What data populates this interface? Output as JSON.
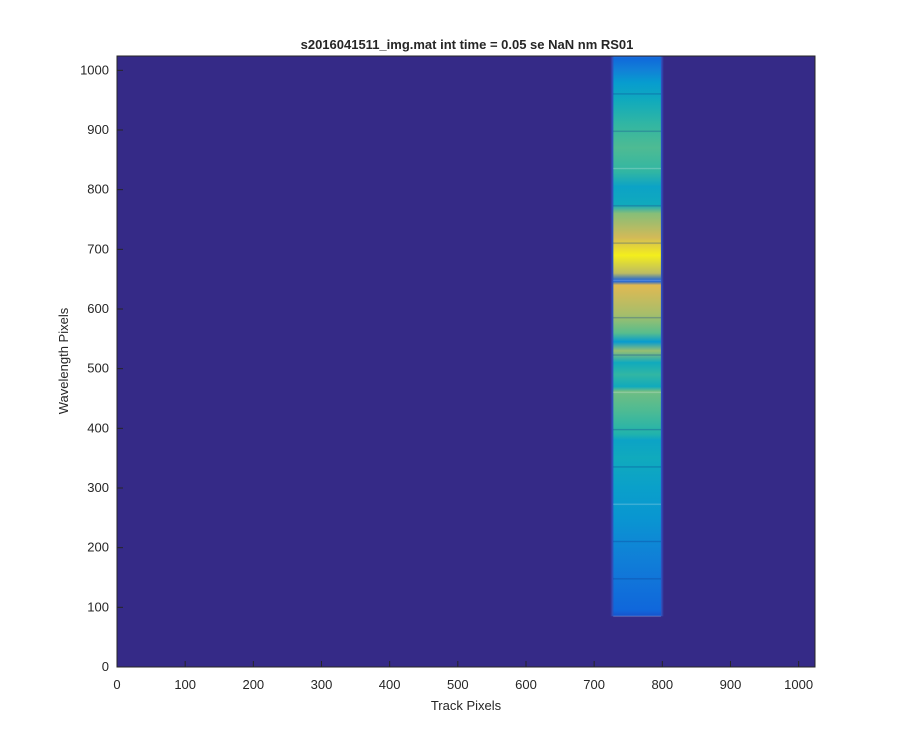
{
  "chart_data": {
    "type": "heatmap",
    "title": "s2016041511_img.mat int time = 0.05 se  NaN nm RS01",
    "xlabel": "Track Pixels",
    "ylabel": "Wavelength Pixels",
    "xlim": [
      0,
      1024
    ],
    "ylim": [
      0,
      1024
    ],
    "x_ticks": [
      0,
      100,
      200,
      300,
      400,
      500,
      600,
      700,
      800,
      900,
      1000
    ],
    "y_ticks": [
      0,
      100,
      200,
      300,
      400,
      500,
      600,
      700,
      800,
      900,
      1000
    ],
    "colormap": "parula",
    "background_value": 0.0,
    "stripe": {
      "x_range": [
        728,
        798
      ],
      "y_range": [
        85,
        1023
      ]
    },
    "intensity_profile": [
      {
        "y": 85,
        "v": 0.12
      },
      {
        "y": 95,
        "v": 0.2
      },
      {
        "y": 150,
        "v": 0.27
      },
      {
        "y": 200,
        "v": 0.34
      },
      {
        "y": 250,
        "v": 0.42
      },
      {
        "y": 300,
        "v": 0.48
      },
      {
        "y": 350,
        "v": 0.55
      },
      {
        "y": 380,
        "v": 0.5
      },
      {
        "y": 390,
        "v": 0.62
      },
      {
        "y": 430,
        "v": 0.7
      },
      {
        "y": 462,
        "v": 0.75
      },
      {
        "y": 470,
        "v": 0.55
      },
      {
        "y": 490,
        "v": 0.65
      },
      {
        "y": 510,
        "v": 0.55
      },
      {
        "y": 530,
        "v": 0.8
      },
      {
        "y": 545,
        "v": 0.45
      },
      {
        "y": 560,
        "v": 0.72
      },
      {
        "y": 590,
        "v": 0.82
      },
      {
        "y": 640,
        "v": 0.9
      },
      {
        "y": 647,
        "v": 0.15
      },
      {
        "y": 660,
        "v": 0.85
      },
      {
        "y": 690,
        "v": 0.98
      },
      {
        "y": 720,
        "v": 0.88
      },
      {
        "y": 760,
        "v": 0.78
      },
      {
        "y": 775,
        "v": 0.55
      },
      {
        "y": 790,
        "v": 0.52
      },
      {
        "y": 805,
        "v": 0.5
      },
      {
        "y": 830,
        "v": 0.65
      },
      {
        "y": 870,
        "v": 0.7
      },
      {
        "y": 910,
        "v": 0.65
      },
      {
        "y": 950,
        "v": 0.55
      },
      {
        "y": 980,
        "v": 0.45
      },
      {
        "y": 1000,
        "v": 0.32
      },
      {
        "y": 1023,
        "v": 0.2
      }
    ],
    "grid": false
  }
}
